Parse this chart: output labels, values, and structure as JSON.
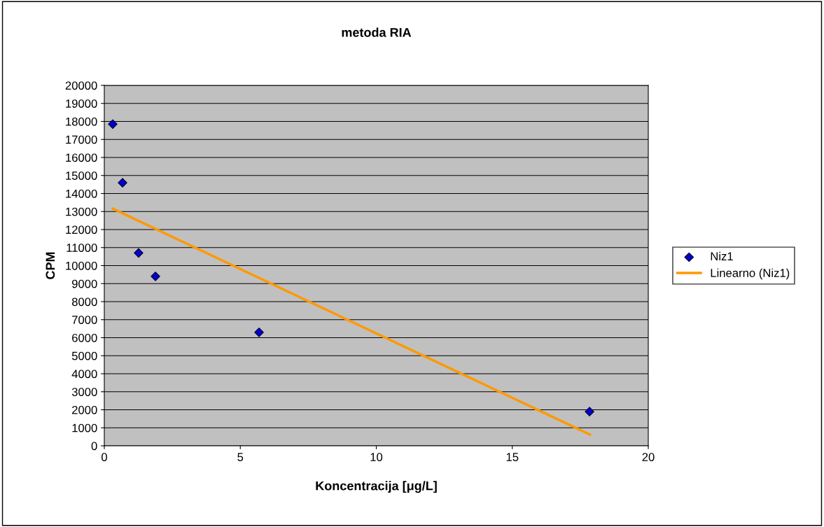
{
  "chart_data": {
    "type": "scatter",
    "title": "metoda RIA",
    "xlabel": "Koncentracija [μg/L]",
    "ylabel": "CPM",
    "xlim": [
      0,
      20
    ],
    "xticks": [
      0,
      5,
      10,
      15,
      20
    ],
    "ylim": [
      0,
      20000
    ],
    "yticks": [
      0,
      1000,
      2000,
      3000,
      4000,
      5000,
      6000,
      7000,
      8000,
      9000,
      10000,
      11000,
      12000,
      13000,
      14000,
      15000,
      16000,
      17000,
      18000,
      19000,
      20000
    ],
    "grid": "y",
    "legend": "right",
    "series": [
      {
        "name": "Niz1",
        "marker": "diamond",
        "color": "#0000cc",
        "x": [
          0.31,
          0.67,
          1.26,
          1.88,
          5.69,
          17.84
        ],
        "values": [
          17850,
          14600,
          10700,
          9400,
          6300,
          1900
        ]
      },
      {
        "name": "Linearno (Niz1)",
        "type": "line",
        "marker": "none",
        "color": "#ff9900",
        "x": [
          0.31,
          17.86
        ],
        "values": [
          13160,
          620
        ]
      }
    ]
  }
}
